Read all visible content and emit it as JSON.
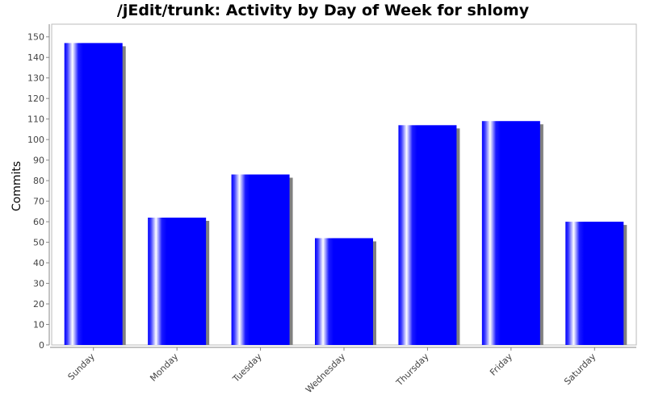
{
  "chart_data": {
    "type": "bar",
    "title": "/jEdit/trunk: Activity by Day of Week for shlomy",
    "xlabel": "",
    "ylabel": "Commits",
    "categories": [
      "Sunday",
      "Monday",
      "Tuesday",
      "Wednesday",
      "Thursday",
      "Friday",
      "Saturday"
    ],
    "values": [
      147,
      62,
      83,
      52,
      107,
      109,
      60
    ],
    "ylim": [
      0,
      155
    ],
    "yticks": [
      0,
      10,
      20,
      30,
      40,
      50,
      60,
      70,
      80,
      90,
      100,
      110,
      120,
      130,
      140,
      150
    ],
    "grid": false,
    "legend": "none",
    "colors": {
      "bar": "#0000ff",
      "highlight": "#ffffff",
      "shadow": "#808080",
      "axis": "#888888"
    }
  }
}
